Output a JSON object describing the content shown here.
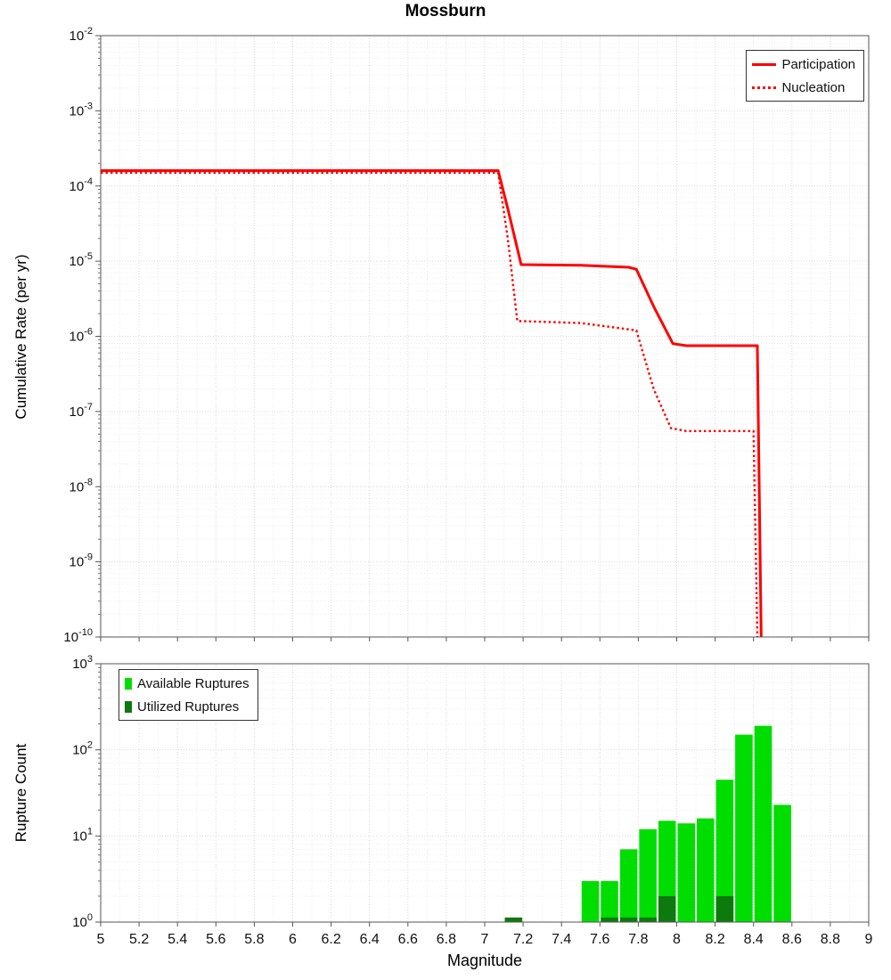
{
  "title": "Mossburn",
  "chart_data": [
    {
      "type": "line",
      "title": "Mossburn",
      "xlabel": "Magnitude",
      "ylabel": "Cumulative Rate (per yr)",
      "xlim": [
        5,
        9
      ],
      "x_tick_step": 0.2,
      "y_scale": "log",
      "y_exponent_range": [
        -10,
        -2
      ],
      "y_tick_exponents": [
        -2,
        -3,
        -4,
        -5,
        -6,
        -7,
        -8,
        -9,
        -10
      ],
      "grid": true,
      "legend_position": "top-right",
      "series": [
        {
          "name": "Participation",
          "color": "#ff0000",
          "style": "solid",
          "points": [
            [
              5.0,
              0.00016
            ],
            [
              7.07,
              0.00016
            ],
            [
              7.12,
              5e-05
            ],
            [
              7.19,
              9e-06
            ],
            [
              7.5,
              8.8e-06
            ],
            [
              7.75,
              8.3e-06
            ],
            [
              7.79,
              7.8e-06
            ],
            [
              7.88,
              2.5e-06
            ],
            [
              7.98,
              8e-07
            ],
            [
              8.05,
              7.5e-07
            ],
            [
              8.42,
              7.5e-07
            ],
            [
              8.44,
              1e-10
            ]
          ]
        },
        {
          "name": "Nucleation",
          "color": "#ff0000",
          "style": "dotted",
          "points": [
            [
              5.0,
              0.00015
            ],
            [
              7.07,
              0.00015
            ],
            [
              7.12,
              2e-05
            ],
            [
              7.17,
              1.6e-06
            ],
            [
              7.5,
              1.5e-06
            ],
            [
              7.79,
              1.2e-06
            ],
            [
              7.88,
              2e-07
            ],
            [
              7.97,
              6e-08
            ],
            [
              8.05,
              5.5e-08
            ],
            [
              8.4,
              5.5e-08
            ],
            [
              8.42,
              1e-10
            ]
          ]
        }
      ]
    },
    {
      "type": "bar",
      "xlabel": "Magnitude",
      "ylabel": "Rupture Count",
      "xlim": [
        5,
        9
      ],
      "x_ticks": [
        "5",
        "5.2",
        "5.4",
        "5.6",
        "5.8",
        "6",
        "6.2",
        "6.4",
        "6.6",
        "6.8",
        "7",
        "7.2",
        "7.4",
        "7.6",
        "7.8",
        "8",
        "8.2",
        "8.4",
        "8.6",
        "8.8",
        "9"
      ],
      "y_scale": "log",
      "y_exponent_range": [
        0,
        3
      ],
      "y_tick_exponents": [
        3,
        2,
        1,
        0
      ],
      "bin_width": 0.1,
      "legend_position": "top-left",
      "series": [
        {
          "name": "Available Ruptures",
          "color": "#00dd00",
          "x": [
            7.15,
            7.55,
            7.65,
            7.75,
            7.85,
            7.95,
            8.05,
            8.15,
            8.25,
            8.35,
            8.45,
            8.55
          ],
          "values": [
            1,
            3,
            3,
            7,
            12,
            15,
            14,
            16,
            45,
            150,
            190,
            23
          ]
        },
        {
          "name": "Utilized Ruptures",
          "color": "#0e7a0e",
          "x": [
            7.15,
            7.65,
            7.75,
            7.85,
            7.95,
            8.25
          ],
          "values": [
            1,
            1,
            1,
            1,
            2,
            2
          ]
        }
      ]
    }
  ]
}
